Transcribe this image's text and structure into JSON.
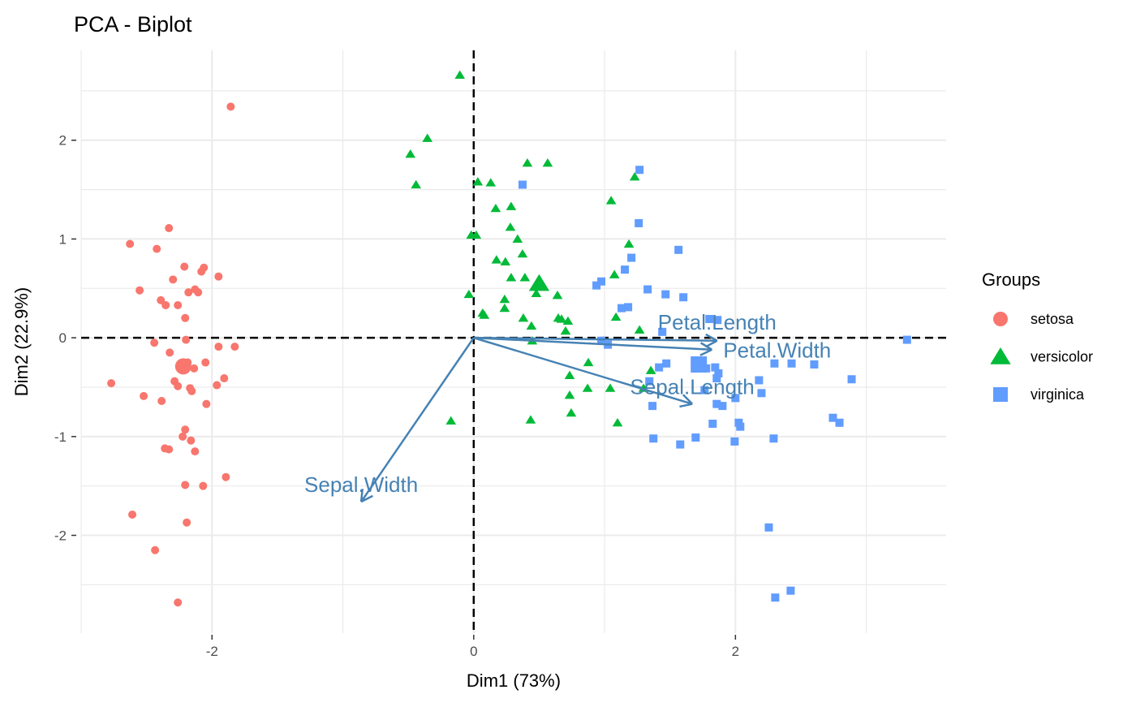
{
  "chart_data": {
    "type": "scatter",
    "title": "PCA - Biplot",
    "xlabel": "Dim1 (73%)",
    "ylabel": "Dim2 (22.9%)",
    "xlim": [
      -3.0,
      3.61
    ],
    "ylim": [
      -2.99,
      2.91
    ],
    "x_ticks": [
      -2,
      0,
      2
    ],
    "y_ticks": [
      -2,
      -1,
      0,
      1,
      2
    ],
    "grid": true,
    "reference_lines": {
      "x": 0,
      "y": 0,
      "style": "dashed"
    },
    "legend": {
      "title": "Groups",
      "placement": "right"
    },
    "series": [
      {
        "name": "setosa",
        "shape": "circle",
        "color": "#F8766D",
        "centroid": [
          -2.22,
          -0.29
        ],
        "points": [
          [
            -1.857,
            2.34
          ],
          [
            -2.329,
            1.11
          ],
          [
            -2.627,
            0.95
          ],
          [
            -2.422,
            0.9
          ],
          [
            -2.211,
            0.72
          ],
          [
            -2.298,
            0.59
          ],
          [
            -2.062,
            0.71
          ],
          [
            -2.081,
            0.67
          ],
          [
            -1.95,
            0.62
          ],
          [
            -2.553,
            0.48
          ],
          [
            -2.18,
            0.46
          ],
          [
            -2.106,
            0.46
          ],
          [
            -2.13,
            0.49
          ],
          [
            -2.261,
            0.33
          ],
          [
            -2.391,
            0.38
          ],
          [
            -2.354,
            0.33
          ],
          [
            -2.205,
            0.2
          ],
          [
            -2.199,
            -0.02
          ],
          [
            -2.441,
            -0.05
          ],
          [
            -2.323,
            -0.15
          ],
          [
            -1.95,
            -0.09
          ],
          [
            -1.826,
            -0.09
          ],
          [
            -2.211,
            -0.26
          ],
          [
            -2.05,
            -0.25
          ],
          [
            -2.137,
            -0.31
          ],
          [
            -2.186,
            -0.25
          ],
          [
            -2.77,
            -0.46
          ],
          [
            -2.286,
            -0.44
          ],
          [
            -2.261,
            -0.49
          ],
          [
            -2.168,
            -0.51
          ],
          [
            -2.155,
            -0.54
          ],
          [
            -1.963,
            -0.48
          ],
          [
            -1.907,
            -0.41
          ],
          [
            -2.522,
            -0.59
          ],
          [
            -2.385,
            -0.64
          ],
          [
            -2.043,
            -0.67
          ],
          [
            -2.205,
            -0.93
          ],
          [
            -2.224,
            -1.0
          ],
          [
            -2.161,
            -1.04
          ],
          [
            -2.13,
            -1.15
          ],
          [
            -2.36,
            -1.12
          ],
          [
            -2.329,
            -1.13
          ],
          [
            -1.894,
            -1.41
          ],
          [
            -2.205,
            -1.49
          ],
          [
            -2.068,
            -1.5
          ],
          [
            -2.609,
            -1.79
          ],
          [
            -2.193,
            -1.87
          ],
          [
            -2.435,
            -2.15
          ],
          [
            -2.261,
            -2.68
          ]
        ]
      },
      {
        "name": "versicolor",
        "shape": "triangle",
        "color": "#00BA38",
        "centroid": [
          0.5,
          0.55
        ],
        "points": [
          [
            -0.106,
            2.66
          ],
          [
            -0.354,
            2.02
          ],
          [
            -0.484,
            1.86
          ],
          [
            -0.441,
            1.55
          ],
          [
            0.41,
            1.77
          ],
          [
            0.565,
            1.77
          ],
          [
            0.031,
            1.58
          ],
          [
            0.13,
            1.57
          ],
          [
            1.05,
            1.39
          ],
          [
            0.168,
            1.31
          ],
          [
            0.286,
            1.33
          ],
          [
            0.28,
            1.12
          ],
          [
            0.174,
            0.79
          ],
          [
            0.242,
            0.77
          ],
          [
            0.335,
            1.0
          ],
          [
            0.019,
            1.04
          ],
          [
            -0.019,
            1.04
          ],
          [
            0.373,
            0.85
          ],
          [
            0.286,
            0.61
          ],
          [
            0.391,
            0.61
          ],
          [
            0.64,
            0.43
          ],
          [
            0.478,
            0.45
          ],
          [
            -0.037,
            0.44
          ],
          [
            0.236,
            0.39
          ],
          [
            0.236,
            0.3
          ],
          [
            0.081,
            0.23
          ],
          [
            0.379,
            0.2
          ],
          [
            0.068,
            0.25
          ],
          [
            0.646,
            0.2
          ],
          [
            0.671,
            0.19
          ],
          [
            0.72,
            0.17
          ],
          [
            0.441,
            0.12
          ],
          [
            0.702,
            0.07
          ],
          [
            1.186,
            0.95
          ],
          [
            1.075,
            0.64
          ],
          [
            1.23,
            1.63
          ],
          [
            1.087,
            0.21
          ],
          [
            1.267,
            0.08
          ],
          [
            0.447,
            -0.03
          ],
          [
            0.876,
            -0.25
          ],
          [
            0.733,
            -0.38
          ],
          [
            0.87,
            -0.51
          ],
          [
            1.043,
            -0.51
          ],
          [
            1.298,
            -0.51
          ],
          [
            0.733,
            -0.58
          ],
          [
            1.354,
            -0.33
          ],
          [
            0.435,
            -0.83
          ],
          [
            0.745,
            -0.76
          ],
          [
            1.099,
            -0.86
          ],
          [
            -0.174,
            -0.84
          ]
        ]
      },
      {
        "name": "virginica",
        "shape": "square",
        "color": "#619CFF",
        "centroid": [
          1.72,
          -0.27
        ],
        "points": [
          [
            0.373,
            1.55
          ],
          [
            1.267,
            1.7
          ],
          [
            1.261,
            1.16
          ],
          [
            1.565,
            0.89
          ],
          [
            0.975,
            0.57
          ],
          [
            1.155,
            0.69
          ],
          [
            1.205,
            0.81
          ],
          [
            1.329,
            0.49
          ],
          [
            1.466,
            0.44
          ],
          [
            1.602,
            0.41
          ],
          [
            0.938,
            0.53
          ],
          [
            1.13,
            0.3
          ],
          [
            1.18,
            0.31
          ],
          [
            1.801,
            0.19
          ],
          [
            1.863,
            0.18
          ],
          [
            1.441,
            0.06
          ],
          [
            3.311,
            -0.02
          ],
          [
            0.975,
            -0.03
          ],
          [
            1.025,
            -0.07
          ],
          [
            1.416,
            -0.3
          ],
          [
            1.472,
            -0.26
          ],
          [
            1.845,
            -0.3
          ],
          [
            1.857,
            -0.41
          ],
          [
            1.87,
            -0.36
          ],
          [
            1.342,
            -0.44
          ],
          [
            1.366,
            -0.69
          ],
          [
            1.764,
            -0.53
          ],
          [
            1.857,
            -0.67
          ],
          [
            1.901,
            -0.69
          ],
          [
            1.826,
            -0.87
          ],
          [
            2.0,
            -0.61
          ],
          [
            2.025,
            -0.86
          ],
          [
            2.037,
            -0.9
          ],
          [
            1.776,
            -0.31
          ],
          [
            2.18,
            -0.43
          ],
          [
            2.298,
            -0.26
          ],
          [
            2.429,
            -0.26
          ],
          [
            2.199,
            -0.56
          ],
          [
            2.602,
            -0.27
          ],
          [
            2.888,
            -0.42
          ],
          [
            2.745,
            -0.81
          ],
          [
            2.795,
            -0.86
          ],
          [
            1.373,
            -1.02
          ],
          [
            1.578,
            -1.08
          ],
          [
            1.696,
            -1.01
          ],
          [
            2.292,
            -1.02
          ],
          [
            1.994,
            -1.05
          ],
          [
            2.255,
            -1.92
          ],
          [
            2.304,
            -2.63
          ],
          [
            2.422,
            -2.56
          ]
        ]
      }
    ],
    "arrows": {
      "color": "#4682B4",
      "items": [
        {
          "label": "Petal.Length",
          "x": 1.86,
          "y": -0.03
        },
        {
          "label": "Petal.Width",
          "x": 1.82,
          "y": -0.12
        },
        {
          "label": "Sepal.Length",
          "x": 1.67,
          "y": -0.67
        },
        {
          "label": "Sepal.Width",
          "x": -0.86,
          "y": -1.66
        }
      ]
    }
  }
}
